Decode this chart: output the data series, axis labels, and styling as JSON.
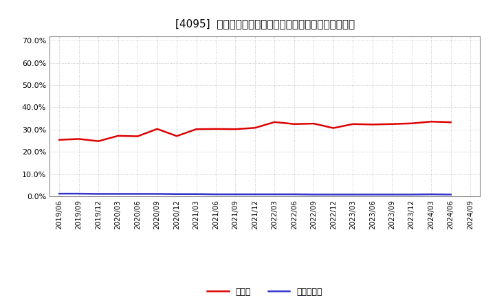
{
  "title": "[4095]  現預金、有利子負債の総資産に対する比率の推移",
  "x_labels": [
    "2019/06",
    "2019/09",
    "2019/12",
    "2020/03",
    "2020/06",
    "2020/09",
    "2020/12",
    "2021/03",
    "2021/06",
    "2021/09",
    "2021/12",
    "2022/03",
    "2022/06",
    "2022/09",
    "2022/12",
    "2023/03",
    "2023/06",
    "2023/09",
    "2023/12",
    "2024/03",
    "2024/06",
    "2024/09"
  ],
  "cash_values": [
    0.254,
    0.258,
    0.248,
    0.272,
    0.27,
    0.303,
    0.271,
    0.302,
    0.303,
    0.302,
    0.308,
    0.334,
    0.325,
    0.327,
    0.307,
    0.325,
    0.323,
    0.325,
    0.328,
    0.336,
    0.333,
    null
  ],
  "debt_values": [
    0.012,
    0.012,
    0.011,
    0.011,
    0.011,
    0.011,
    0.01,
    0.01,
    0.009,
    0.009,
    0.009,
    0.009,
    0.009,
    0.008,
    0.008,
    0.008,
    0.008,
    0.008,
    0.008,
    0.009,
    0.008,
    null
  ],
  "cash_color": "#dd0000",
  "debt_color": "#3333cc",
  "background_color": "#ffffff",
  "plot_bg_color": "#ffffff",
  "grid_color": "#aaaaaa",
  "ylim": [
    0.0,
    0.72
  ],
  "yticks": [
    0.0,
    0.1,
    0.2,
    0.3,
    0.4,
    0.5,
    0.6,
    0.7
  ],
  "legend_cash": "現預金",
  "legend_debt": "有利子負債",
  "line_width": 1.8
}
